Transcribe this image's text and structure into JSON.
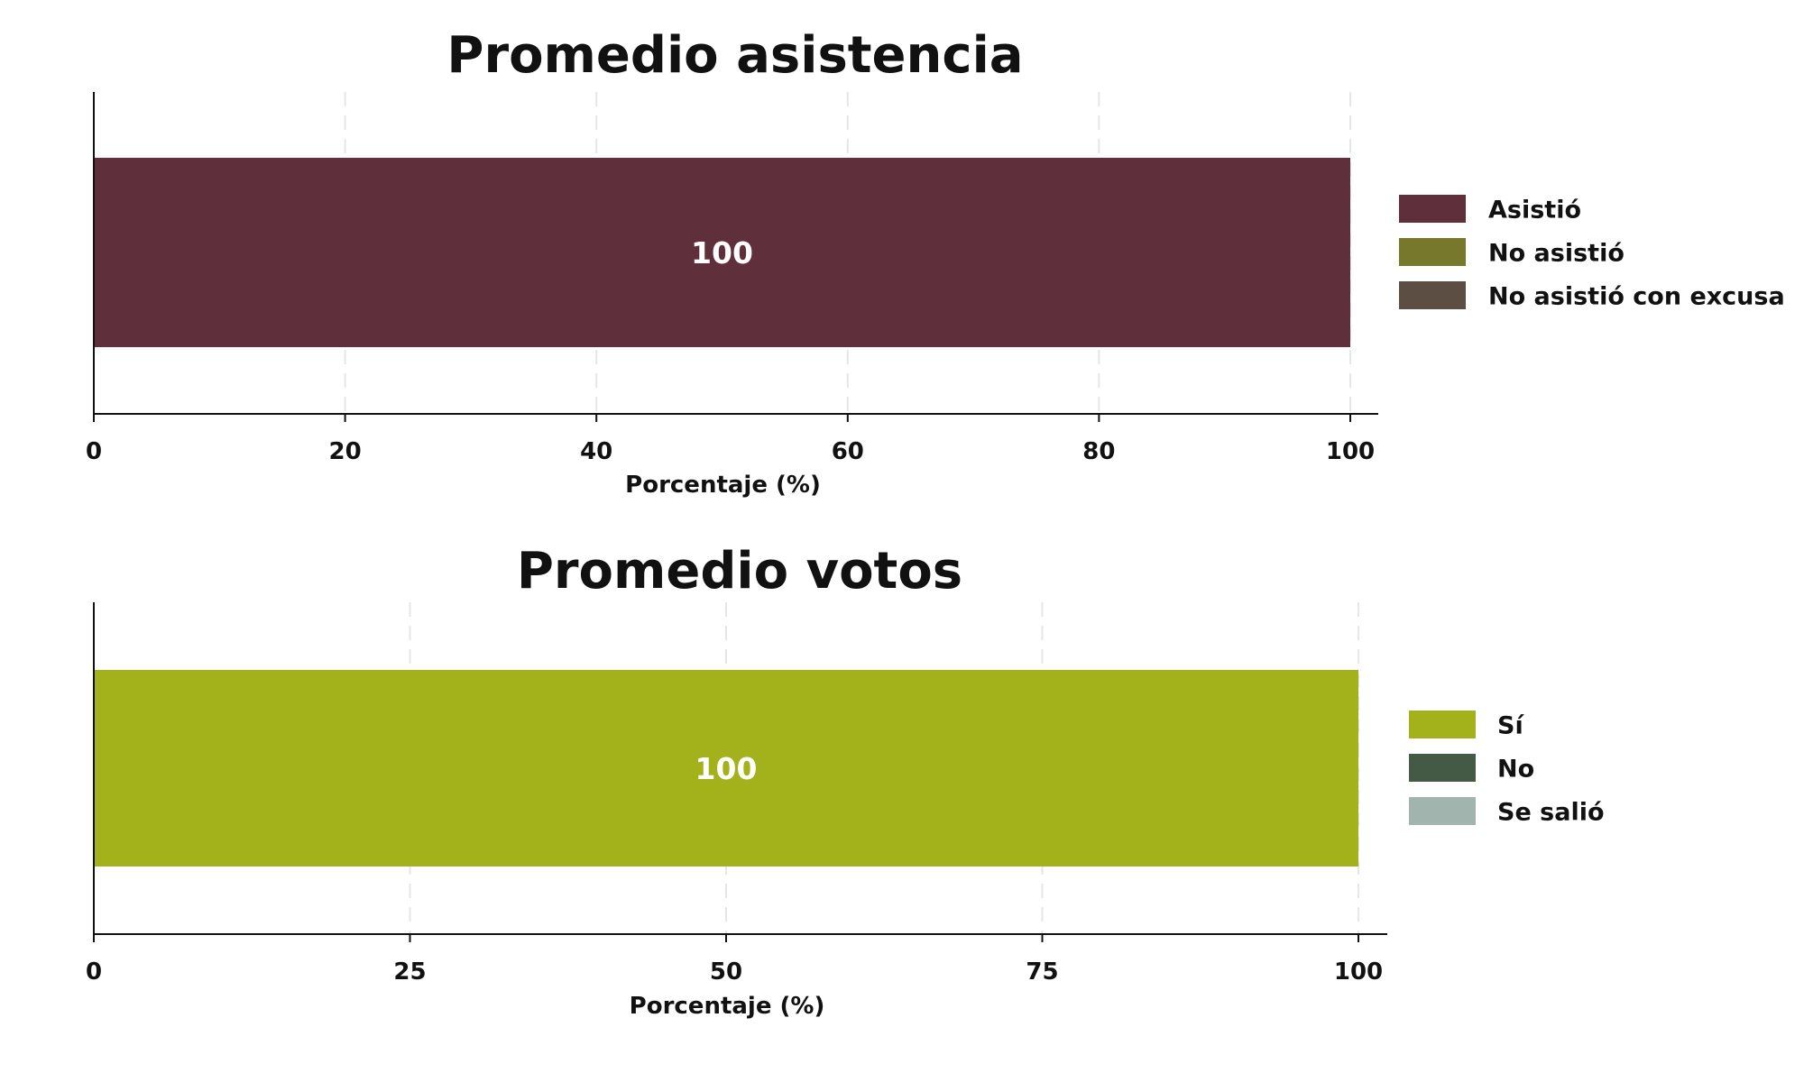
{
  "chart_data": [
    {
      "type": "bar",
      "orientation": "horizontal",
      "stacked": true,
      "title": "Promedio asistencia",
      "xlabel": "Porcentaje (%)",
      "ylabel": "",
      "xlim": [
        0,
        100
      ],
      "xticks": [
        0,
        20,
        40,
        60,
        80,
        100
      ],
      "grid": true,
      "legend_position": "right",
      "categories": [
        ""
      ],
      "series": [
        {
          "name": "Asistió",
          "values": [
            100
          ],
          "color": "#5f2f3b"
        },
        {
          "name": "No asistió",
          "values": [
            0
          ],
          "color": "#77782b"
        },
        {
          "name": "No asistió con excusa",
          "values": [
            0
          ],
          "color": "#5c4e42"
        }
      ],
      "data_labels": [
        "100"
      ]
    },
    {
      "type": "bar",
      "orientation": "horizontal",
      "stacked": true,
      "title": "Promedio votos",
      "xlabel": "Porcentaje (%)",
      "ylabel": "",
      "xlim": [
        0,
        100
      ],
      "xticks": [
        0,
        25,
        50,
        75,
        100
      ],
      "grid": true,
      "legend_position": "right",
      "categories": [
        ""
      ],
      "series": [
        {
          "name": "Sí",
          "values": [
            100
          ],
          "color": "#a3b11b"
        },
        {
          "name": "No",
          "values": [
            0
          ],
          "color": "#445a44"
        },
        {
          "name": "Se salió",
          "values": [
            0
          ],
          "color": "#a2b4ae"
        }
      ],
      "data_labels": [
        "100"
      ]
    }
  ]
}
